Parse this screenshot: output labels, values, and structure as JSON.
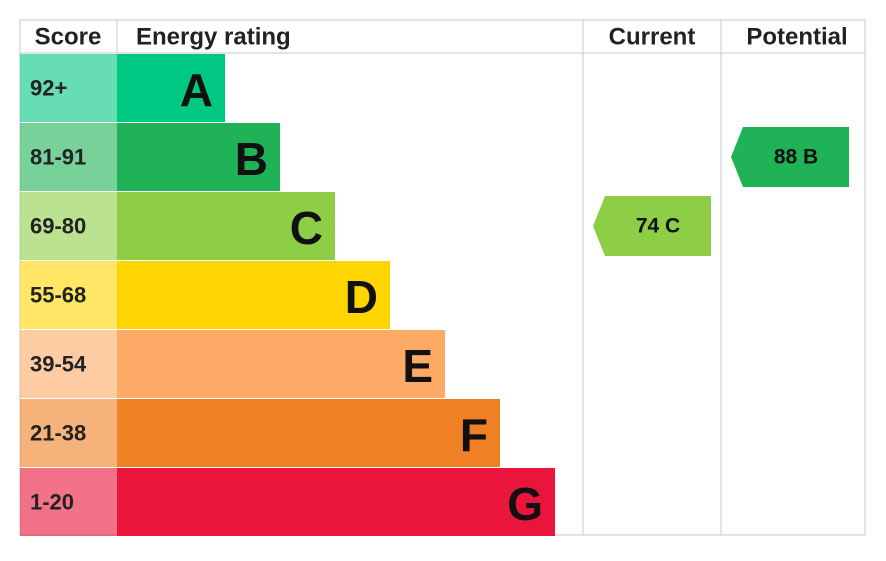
{
  "header": {
    "score": "Score",
    "rating": "Energy rating",
    "current": "Current",
    "potential": "Potential"
  },
  "bands": [
    {
      "score": "92+",
      "letter": "A",
      "color": "#00c781"
    },
    {
      "score": "81-91",
      "letter": "B",
      "color": "#1fb257"
    },
    {
      "score": "69-80",
      "letter": "C",
      "color": "#8dce46"
    },
    {
      "score": "55-68",
      "letter": "D",
      "color": "#ffd500"
    },
    {
      "score": "39-54",
      "letter": "E",
      "color": "#fcaa65"
    },
    {
      "score": "21-38",
      "letter": "F",
      "color": "#ef8023"
    },
    {
      "score": "1-20",
      "letter": "G",
      "color": "#e9153b"
    }
  ],
  "current": {
    "label": "74 C"
  },
  "potential": {
    "label": "88 B"
  }
}
